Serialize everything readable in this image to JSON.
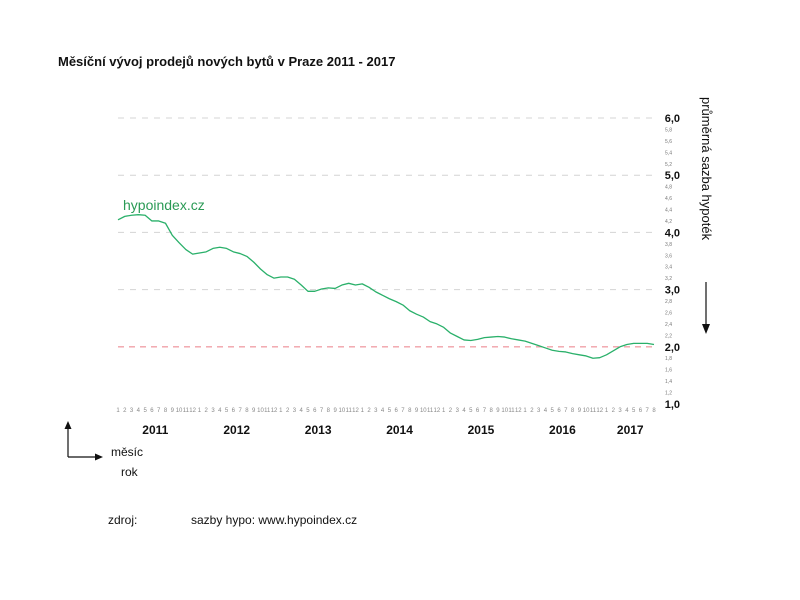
{
  "chart_data": {
    "type": "line",
    "title": "Měsíční vývoj prodejů nových bytů v Praze 2011 - 2017",
    "ylabel": "průměrná sazba hypoték",
    "xlabel_month": "měsíc",
    "xlabel_year": "rok",
    "ylim": [
      1.0,
      6.0
    ],
    "y_major_ticks": [
      "6,0",
      "5,0",
      "4,0",
      "3,0",
      "2,0",
      "1,0"
    ],
    "y_minor_ticks": [
      "5,8",
      "5,6",
      "5,4",
      "5,2",
      "4,8",
      "4,6",
      "4,4",
      "4,2",
      "3,8",
      "3,6",
      "3,4",
      "3,2",
      "2,8",
      "2,6",
      "2,4",
      "2,2",
      "1,8",
      "1,6",
      "1,4",
      "1,2"
    ],
    "month_labels": [
      "1",
      "2",
      "3",
      "4",
      "5",
      "6",
      "7",
      "8",
      "9",
      "10",
      "11",
      "12"
    ],
    "years": [
      "2011",
      "2012",
      "2013",
      "2014",
      "2015",
      "2016",
      "2017"
    ],
    "reference_line": 2.0,
    "series": [
      {
        "name": "sazby hypo",
        "color": "#2ab06a",
        "values": [
          4.22,
          4.28,
          4.3,
          4.31,
          4.3,
          4.2,
          4.2,
          4.16,
          3.95,
          3.82,
          3.7,
          3.62,
          3.64,
          3.66,
          3.72,
          3.74,
          3.72,
          3.66,
          3.63,
          3.58,
          3.48,
          3.36,
          3.26,
          3.2,
          3.22,
          3.22,
          3.18,
          3.08,
          2.97,
          2.97,
          3.01,
          3.03,
          3.02,
          3.08,
          3.11,
          3.08,
          3.1,
          3.04,
          2.96,
          2.9,
          2.84,
          2.79,
          2.73,
          2.63,
          2.57,
          2.52,
          2.44,
          2.4,
          2.34,
          2.24,
          2.18,
          2.12,
          2.11,
          2.13,
          2.16,
          2.17,
          2.18,
          2.17,
          2.14,
          2.12,
          2.1,
          2.06,
          2.02,
          1.98,
          1.94,
          1.92,
          1.91,
          1.88,
          1.86,
          1.84,
          1.8,
          1.81,
          1.86,
          1.93,
          2.0,
          2.04,
          2.06,
          2.06,
          2.06,
          2.04
        ]
      }
    ]
  },
  "watermark": "hypoindex.cz",
  "source_label": "zdroj:",
  "source_value": "sazby hypo: www.hypoindex.cz",
  "colors": {
    "line": "#2ab06a",
    "reference": "#f0a0a8",
    "grid": "#d4d4d4"
  }
}
